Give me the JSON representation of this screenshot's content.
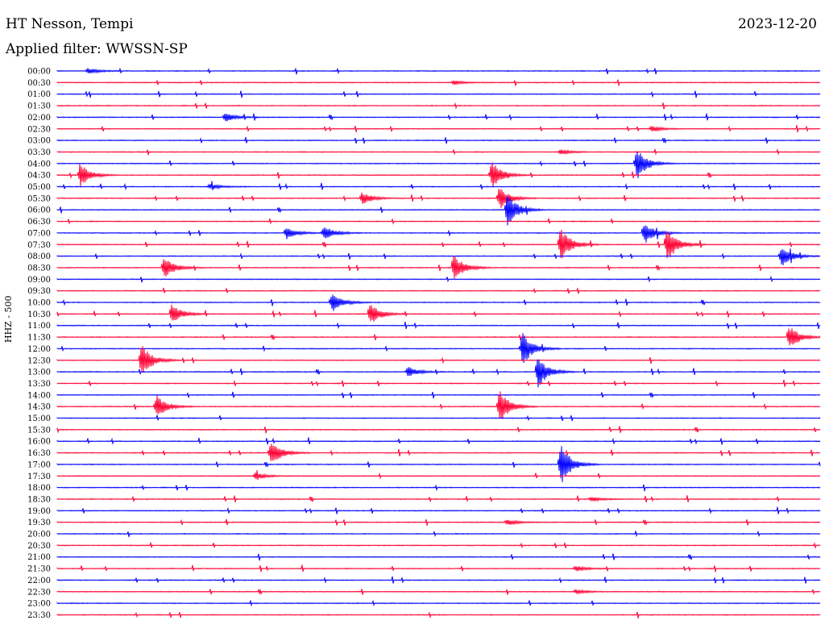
{
  "header": {
    "station": "HT Nesson, Tempi",
    "date": "2023-12-20",
    "filter": "Applied filter: WWSSN-SP"
  },
  "colors": {
    "blue": "#0000ff",
    "red": "#ff0033"
  },
  "chart_data": {
    "type": "line",
    "title": "HT Nesson, Tempi",
    "ylabel": "HHZ - 500",
    "trace_colors": [
      "#0000ff",
      "#ff0033"
    ],
    "rows": [
      "00:00",
      "00:30",
      "01:00",
      "01:30",
      "02:00",
      "02:30",
      "03:00",
      "03:30",
      "04:00",
      "04:30",
      "05:00",
      "05:30",
      "06:00",
      "06:30",
      "07:00",
      "07:30",
      "08:00",
      "08:30",
      "09:00",
      "09:30",
      "10:00",
      "10:30",
      "11:00",
      "11:30",
      "12:00",
      "12:30",
      "13:00",
      "13:30",
      "14:00",
      "14:30",
      "15:00",
      "15:30",
      "16:00",
      "16:30",
      "17:00",
      "17:30",
      "18:00",
      "18:30",
      "19:00",
      "19:30",
      "20:00",
      "20:30",
      "21:00",
      "21:30",
      "22:00",
      "22:30",
      "23:00",
      "23:30"
    ],
    "events": [
      {
        "row": 0,
        "t": 0.04,
        "a": 0.12
      },
      {
        "row": 1,
        "t": 0.52,
        "a": 0.08
      },
      {
        "row": 4,
        "t": 0.22,
        "a": 0.18
      },
      {
        "row": 5,
        "t": 0.78,
        "a": 0.12
      },
      {
        "row": 7,
        "t": 0.66,
        "a": 0.1
      },
      {
        "row": 8,
        "t": 0.76,
        "a": 0.65
      },
      {
        "row": 9,
        "t": 0.03,
        "a": 0.5
      },
      {
        "row": 9,
        "t": 0.57,
        "a": 0.6
      },
      {
        "row": 10,
        "t": 0.2,
        "a": 0.12
      },
      {
        "row": 11,
        "t": 0.4,
        "a": 0.25
      },
      {
        "row": 11,
        "t": 0.58,
        "a": 0.45
      },
      {
        "row": 12,
        "t": 0.59,
        "a": 0.7
      },
      {
        "row": 14,
        "t": 0.3,
        "a": 0.25
      },
      {
        "row": 14,
        "t": 0.35,
        "a": 0.3
      },
      {
        "row": 14,
        "t": 0.77,
        "a": 0.45
      },
      {
        "row": 15,
        "t": 0.66,
        "a": 0.7
      },
      {
        "row": 15,
        "t": 0.8,
        "a": 0.7
      },
      {
        "row": 16,
        "t": 0.95,
        "a": 0.45
      },
      {
        "row": 17,
        "t": 0.14,
        "a": 0.45
      },
      {
        "row": 17,
        "t": 0.52,
        "a": 0.55
      },
      {
        "row": 20,
        "t": 0.36,
        "a": 0.4
      },
      {
        "row": 21,
        "t": 0.15,
        "a": 0.4
      },
      {
        "row": 21,
        "t": 0.41,
        "a": 0.45
      },
      {
        "row": 23,
        "t": 0.96,
        "a": 0.5
      },
      {
        "row": 24,
        "t": 0.61,
        "a": 0.7
      },
      {
        "row": 25,
        "t": 0.11,
        "a": 0.7
      },
      {
        "row": 26,
        "t": 0.63,
        "a": 0.65
      },
      {
        "row": 26,
        "t": 0.46,
        "a": 0.22
      },
      {
        "row": 29,
        "t": 0.13,
        "a": 0.5
      },
      {
        "row": 29,
        "t": 0.58,
        "a": 0.7
      },
      {
        "row": 33,
        "t": 0.28,
        "a": 0.55
      },
      {
        "row": 34,
        "t": 0.66,
        "a": 0.9
      },
      {
        "row": 35,
        "t": 0.26,
        "a": 0.15
      },
      {
        "row": 37,
        "t": 0.7,
        "a": 0.1
      },
      {
        "row": 39,
        "t": 0.59,
        "a": 0.12
      },
      {
        "row": 43,
        "t": 0.68,
        "a": 0.12
      },
      {
        "row": 45,
        "t": 0.68,
        "a": 0.1
      }
    ]
  }
}
